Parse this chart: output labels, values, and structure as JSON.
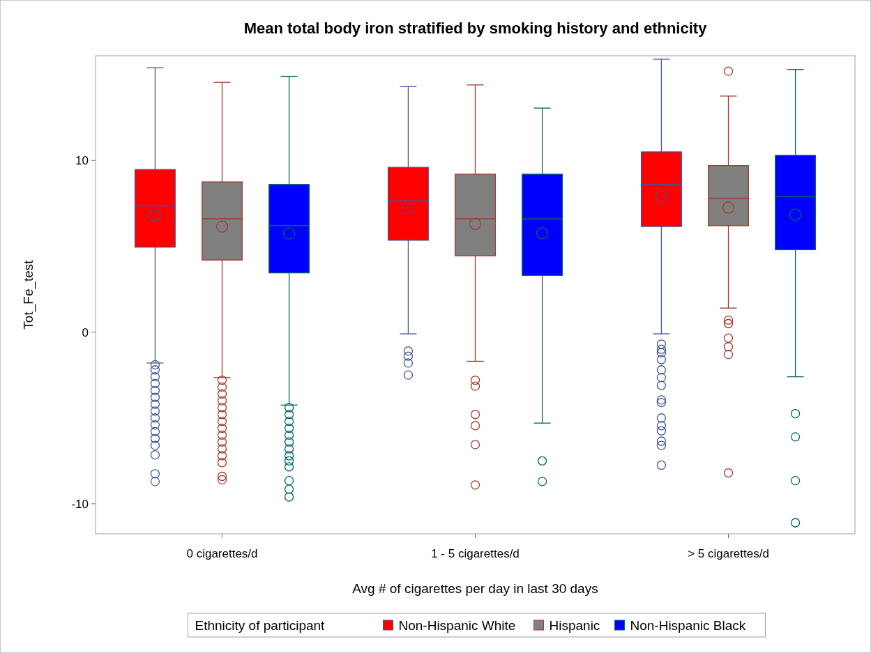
{
  "chart_data": {
    "type": "box",
    "title": "Mean total body iron stratified by smoking history and ethnicity",
    "xlabel": "Avg # of cigarettes per day in last 30 days",
    "ylabel": "Tot_Fe_test",
    "legend_title": "Ethnicity of participant",
    "legend": "bottom",
    "grid": false,
    "marker": "circle",
    "categories": [
      "0 cigarettes/d",
      "1 - 5 cigarettes/d",
      "> 5 cigarettes/d"
    ],
    "ylim": [
      -11.75,
      16.1
    ],
    "yticks": [
      -10,
      0,
      10
    ],
    "series": [
      {
        "name": "Non-Hispanic White",
        "color": "#ff0000",
        "boxes": [
          {
            "low": -1.8,
            "q1": 4.95,
            "median": 7.35,
            "q3": 9.47,
            "high": 15.4,
            "mean": 6.8,
            "outliers": [
              -1.9,
              -2.2,
              -2.6,
              -3.0,
              -3.4,
              -3.8,
              -4.2,
              -4.6,
              -5.0,
              -5.4,
              -5.8,
              -6.2,
              -6.6,
              -7.15,
              -8.25,
              -8.7
            ]
          },
          {
            "low": -0.1,
            "q1": 5.35,
            "median": 7.65,
            "q3": 9.6,
            "high": 14.3,
            "mean": 7.2,
            "outliers": [
              -1.1,
              -1.4,
              -1.8,
              -2.5
            ]
          },
          {
            "low": -0.1,
            "q1": 6.15,
            "median": 8.6,
            "q3": 10.5,
            "high": 15.9,
            "mean": 7.9,
            "outliers": [
              -0.7,
              -1.0,
              -1.2,
              -1.6,
              -2.2,
              -2.65,
              -3.1,
              -3.95,
              -4.1,
              -5.0,
              -5.45,
              -5.75,
              -6.35,
              -6.6,
              -7.75
            ]
          }
        ]
      },
      {
        "name": "Hispanic",
        "color": "#808080",
        "boxes": [
          {
            "low": -2.65,
            "q1": 4.2,
            "median": 6.6,
            "q3": 8.75,
            "high": 14.55,
            "mean": 6.15,
            "outliers": [
              -2.8,
              -3.2,
              -3.6,
              -4.0,
              -4.4,
              -4.8,
              -5.2,
              -5.6,
              -6.0,
              -6.4,
              -6.8,
              -7.2,
              -7.6,
              -8.4,
              -8.6
            ]
          },
          {
            "low": -1.7,
            "q1": 4.45,
            "median": 6.6,
            "q3": 9.2,
            "high": 14.4,
            "mean": 6.3,
            "outliers": [
              -2.8,
              -3.15,
              -4.8,
              -5.45,
              -6.55,
              -8.9
            ]
          },
          {
            "low": 1.4,
            "q1": 6.2,
            "median": 7.8,
            "q3": 9.7,
            "high": 13.75,
            "mean": 7.25,
            "outliers": [
              15.2,
              0.7,
              0.5,
              -0.35,
              -0.85,
              -1.3,
              -8.2
            ]
          }
        ]
      },
      {
        "name": "Non-Hispanic Black",
        "color": "#0000ff",
        "boxes": [
          {
            "low": -4.25,
            "q1": 3.45,
            "median": 6.2,
            "q3": 8.6,
            "high": 14.9,
            "mean": 5.75,
            "outliers": [
              -4.4,
              -4.8,
              -5.2,
              -5.6,
              -6.0,
              -6.4,
              -6.8,
              -7.2,
              -7.5,
              -7.85,
              -8.65,
              -9.15,
              -9.6
            ]
          },
          {
            "low": -5.3,
            "q1": 3.3,
            "median": 6.6,
            "q3": 9.2,
            "high": 13.05,
            "mean": 5.75,
            "outliers": [
              -7.5,
              -8.7
            ]
          },
          {
            "low": -2.6,
            "q1": 4.8,
            "median": 7.9,
            "q3": 10.3,
            "high": 15.3,
            "mean": 6.85,
            "outliers": [
              -4.75,
              -6.1,
              -8.65,
              -11.1
            ]
          }
        ]
      }
    ]
  }
}
